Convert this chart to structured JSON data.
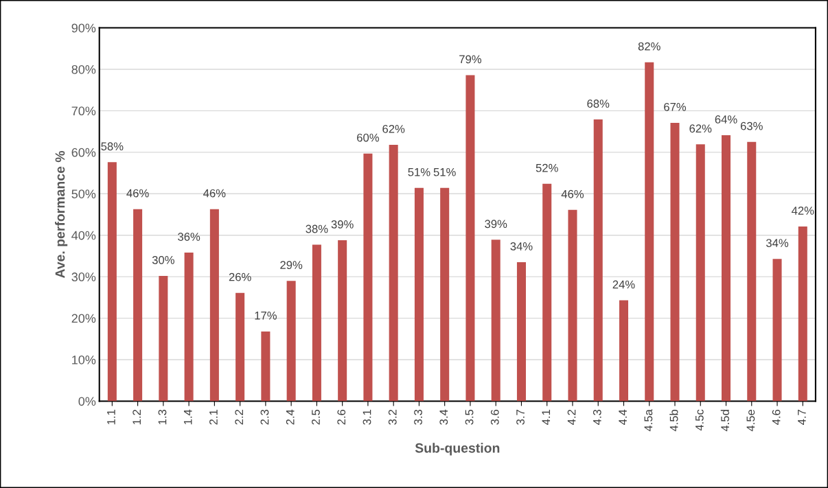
{
  "chart_data": {
    "type": "bar",
    "xlabel": "Sub-question",
    "ylabel": "Ave. performance %",
    "categories": [
      "1.1",
      "1.2",
      "1.3",
      "1.4",
      "2.1",
      "2.2",
      "2.3",
      "2.4",
      "2.5",
      "2.6",
      "3.1",
      "3.2",
      "3.3",
      "3.4",
      "3.5",
      "3.6",
      "3.7",
      "4.1",
      "4.2",
      "4.3",
      "4.4",
      "4.5a",
      "4.5b",
      "4.5c",
      "4.5d",
      "4.5e",
      "4.6",
      "4.7"
    ],
    "values": [
      57.6,
      46.3,
      30.2,
      35.8,
      46.3,
      26.1,
      16.8,
      29.0,
      37.7,
      38.8,
      59.7,
      61.8,
      51.4,
      51.4,
      78.6,
      38.9,
      33.5,
      52.4,
      46.1,
      67.9,
      24.3,
      81.7,
      67.1,
      61.9,
      64.1,
      62.5,
      34.3,
      42.1
    ],
    "value_labels": [
      "58%",
      "46%",
      "30%",
      "36%",
      "46%",
      "26%",
      "17%",
      "29%",
      "38%",
      "39%",
      "60%",
      "62%",
      "51%",
      "51%",
      "79%",
      "39%",
      "34%",
      "52%",
      "46%",
      "68%",
      "24%",
      "82%",
      "67%",
      "62%",
      "64%",
      "63%",
      "34%",
      "42%"
    ],
    "color": "#c0504d",
    "ylim": [
      0,
      90
    ],
    "yticks": [
      {
        "value": 0,
        "label": "0%"
      },
      {
        "value": 10,
        "label": "10%"
      },
      {
        "value": 20,
        "label": "20%"
      },
      {
        "value": 30,
        "label": "30%"
      },
      {
        "value": 40,
        "label": "40%"
      },
      {
        "value": 50,
        "label": "50%"
      },
      {
        "value": 60,
        "label": "60%"
      },
      {
        "value": 70,
        "label": "70%"
      },
      {
        "value": 80,
        "label": "80%"
      },
      {
        "value": 90,
        "label": "90%"
      }
    ],
    "grid": "y"
  }
}
